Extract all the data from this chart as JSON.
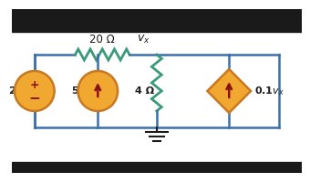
{
  "bg_color": "#ffffff",
  "bar_color": "#1a1a1a",
  "wire_color": "#3a6fad",
  "resistor_color": "#3a9a7a",
  "component_fill": "#f0a830",
  "component_edge": "#c87820",
  "text_color": "#1a1a1a",
  "arrow_color": "#8b1010",
  "label_20ohm": "20 Ω",
  "label_vx": "$v_x$",
  "label_25v": "25 V",
  "label_5a": "5 A",
  "label_4ohm": "4 Ω",
  "label_dep": "0.1$v_x$",
  "wire_lw": 1.8,
  "res_lw": 2.0
}
